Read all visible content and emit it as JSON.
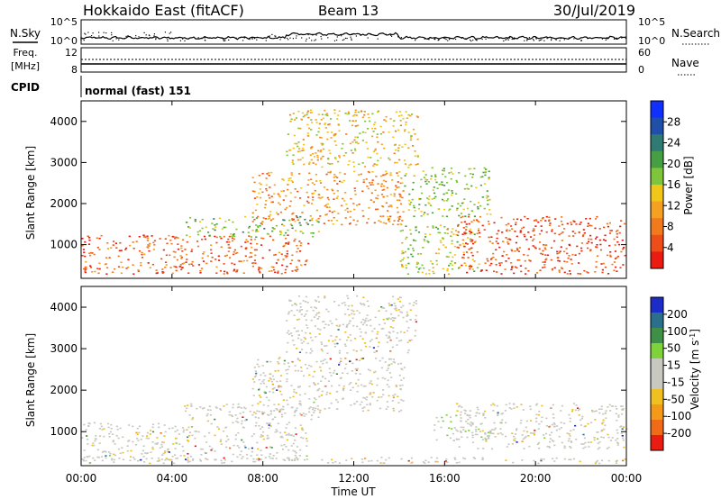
{
  "header": {
    "title": "Hokkaido East (fitACF)",
    "beam": "Beam 13",
    "date": "30/Jul/2019"
  },
  "nsky_panel": {
    "left_label": "N.Sky",
    "right_label": "N.Search",
    "left_ticks": [
      "10^5",
      "10^0"
    ],
    "right_ticks": [
      "10^5",
      "10^0"
    ]
  },
  "freq_panel": {
    "left_label_1": "Freq.",
    "left_label_2": "[MHz]",
    "left_ticks": [
      "12",
      "8"
    ],
    "right_label": "Nave",
    "right_ticks": [
      "60",
      "0"
    ]
  },
  "cpid": {
    "label": "CPID",
    "value": "normal (fast) 151"
  },
  "time_axis": {
    "label": "Time UT",
    "ticks": [
      "00:00",
      "04:00",
      "08:00",
      "12:00",
      "16:00",
      "20:00",
      "00:00"
    ]
  },
  "chart_data": [
    {
      "type": "heatmap",
      "panel": "power",
      "ylabel": "Slant Range [km]",
      "yticks": [
        1000,
        2000,
        3000,
        4000
      ],
      "ylim": [
        180,
        4500
      ],
      "xlim_hours": [
        0,
        24
      ],
      "colorbar_label": "Power [dB]",
      "colorbar_ticks": [
        4,
        8,
        12,
        16,
        20,
        24,
        28
      ],
      "colorbar_colors": [
        "#1030ff",
        "#1f4fa8",
        "#2f7a72",
        "#46a043",
        "#7ec53c",
        "#f2c618",
        "#f4a020",
        "#f07a1c",
        "#ee4c18",
        "#ea1b10"
      ],
      "scatter_regions": [
        {
          "t": [
            0,
            10.0
          ],
          "r": [
            300,
            1250
          ],
          "level": 0.85
        },
        {
          "t": [
            4.5,
            10.5
          ],
          "r": [
            1200,
            1700
          ],
          "level": 0.4
        },
        {
          "t": [
            7.5,
            14.2
          ],
          "r": [
            1500,
            2800
          ],
          "level": 0.72
        },
        {
          "t": [
            9.0,
            14.8
          ],
          "r": [
            2900,
            4300
          ],
          "level": 0.6
        },
        {
          "t": [
            14.0,
            17.5
          ],
          "r": [
            300,
            1500
          ],
          "level": 0.5
        },
        {
          "t": [
            16.5,
            24.0
          ],
          "r": [
            300,
            1700
          ],
          "level": 0.9
        },
        {
          "t": [
            14.2,
            18.0
          ],
          "r": [
            1700,
            2900
          ],
          "level": 0.45
        }
      ]
    },
    {
      "type": "heatmap",
      "panel": "velocity",
      "ylabel": "Slant Range [km]",
      "yticks": [
        1000,
        2000,
        3000,
        4000
      ],
      "ylim": [
        180,
        4500
      ],
      "xlim_hours": [
        0,
        24
      ],
      "colorbar_label": "Velocity [m s^-1]",
      "colorbar_ticks": [
        200,
        100,
        50,
        15,
        -15,
        -50,
        -100,
        -200
      ],
      "colorbar_colors": [
        "#1c2cc8",
        "#2a6f8c",
        "#3f8f46",
        "#7ed23a",
        "#c8c8c0",
        "#c8c8c0",
        "#f0c020",
        "#f39a18",
        "#f06a18",
        "#ea1b10"
      ],
      "scatter_regions": [
        {
          "t": [
            0,
            10.0
          ],
          "r": [
            300,
            1250
          ],
          "level": 0.5
        },
        {
          "t": [
            4.5,
            10.5
          ],
          "r": [
            1200,
            1700
          ],
          "level": 0.5
        },
        {
          "t": [
            7.5,
            14.2
          ],
          "r": [
            1500,
            2800
          ],
          "level": 0.5
        },
        {
          "t": [
            9.0,
            14.8
          ],
          "r": [
            2900,
            4300
          ],
          "level": 0.5
        },
        {
          "t": [
            15.5,
            18.0
          ],
          "r": [
            800,
            1500
          ],
          "level": 0.25
        },
        {
          "t": [
            16.5,
            24.0
          ],
          "r": [
            600,
            1700
          ],
          "level": 0.5
        },
        {
          "t": [
            0,
            24.0
          ],
          "r": [
            250,
            400
          ],
          "level": 0.7
        }
      ]
    }
  ]
}
